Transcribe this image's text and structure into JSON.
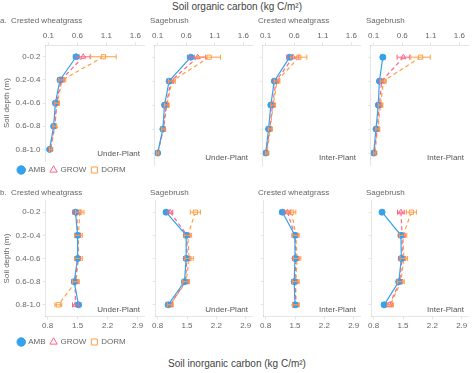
{
  "chart_data": [
    {
      "type": "line",
      "orientation": "horizontal",
      "title": "a.  Crested wheatgrass",
      "xlabel": "Soil organic carbon (kg C/m²)",
      "ylabel": "Soil depth (m)",
      "annotations": [
        "Under-Plant"
      ],
      "y": [
        0.1,
        0.3,
        0.5,
        0.7,
        0.9
      ],
      "xlim": [
        0.05,
        1.75
      ],
      "xticks": [
        0.1,
        0.6,
        1.1,
        1.6
      ],
      "ylim": [
        1,
        0
      ],
      "yticks": [
        {
          "value": 0.1,
          "label": "0-0.2"
        },
        {
          "value": 0.3,
          "label": "0.2-0.4"
        },
        {
          "value": 0.5,
          "label": "0.4-0.6"
        },
        {
          "value": 0.7,
          "label": "0.6-0.8"
        },
        {
          "value": 0.9,
          "label": "0.8-1.0"
        }
      ],
      "grid": false,
      "legend": "bottom",
      "series": [
        {
          "name": "AMB",
          "marker": "circle",
          "line_style": "solid",
          "values": [
            0.58,
            0.3,
            0.22,
            0.19,
            0.12
          ],
          "errors": [
            0.05,
            0.04,
            0.03,
            0.03,
            0.02
          ]
        },
        {
          "name": "GROW",
          "marker": "open-triangle",
          "line_style": "dashed",
          "values": [
            0.7,
            0.32,
            0.24,
            0.21,
            0.13
          ],
          "errors": [
            0.12,
            0.05,
            0.04,
            0.03,
            0.02
          ]
        },
        {
          "name": "DORM",
          "marker": "open-square",
          "line_style": "dashed",
          "values": [
            1.05,
            0.34,
            0.25,
            0.21,
            0.14
          ],
          "errors": [
            0.22,
            0.06,
            0.04,
            0.03,
            0.02
          ]
        }
      ]
    },
    {
      "type": "line",
      "orientation": "horizontal",
      "title": "Sagebrush",
      "annotations": [
        "Under-Plant"
      ],
      "y": [
        0.1,
        0.3,
        0.5,
        0.7,
        0.9
      ],
      "xlim": [
        0.05,
        1.75
      ],
      "xticks": [
        0.1,
        0.6,
        1.1,
        1.6
      ],
      "ylim": [
        1,
        0
      ],
      "yticks": [
        0.1,
        0.3,
        0.5,
        0.7,
        0.9
      ],
      "grid": false,
      "tick_labels": "x",
      "series": [
        {
          "name": "AMB",
          "marker": "circle",
          "line_style": "solid",
          "values": [
            0.68,
            0.3,
            0.22,
            0.19,
            0.1
          ],
          "errors": [
            0.06,
            0.04,
            0.03,
            0.03,
            0.02
          ]
        },
        {
          "name": "GROW",
          "marker": "open-triangle",
          "line_style": "dashed",
          "values": [
            0.8,
            0.33,
            0.25,
            0.2,
            0.1
          ],
          "errors": [
            0.14,
            0.05,
            0.04,
            0.03,
            0.02
          ]
        },
        {
          "name": "DORM",
          "marker": "open-square",
          "line_style": "dashed",
          "values": [
            1.0,
            0.35,
            0.26,
            0.2,
            0.1
          ],
          "errors": [
            0.2,
            0.06,
            0.04,
            0.03,
            0.02
          ]
        }
      ]
    },
    {
      "type": "line",
      "orientation": "horizontal",
      "title": "Crested wheatgrass",
      "annotations": [
        "Inter-Plant"
      ],
      "y": [
        0.1,
        0.3,
        0.5,
        0.7,
        0.9
      ],
      "xlim": [
        0.05,
        1.75
      ],
      "xticks": [
        0.1,
        0.6,
        1.1,
        1.6
      ],
      "ylim": [
        1,
        0
      ],
      "yticks": [
        0.1,
        0.3,
        0.5,
        0.7,
        0.9
      ],
      "grid": false,
      "tick_labels": "x",
      "series": [
        {
          "name": "AMB",
          "marker": "circle",
          "line_style": "solid",
          "values": [
            0.52,
            0.25,
            0.19,
            0.15,
            0.1
          ],
          "errors": [
            0.05,
            0.03,
            0.03,
            0.02,
            0.02
          ]
        },
        {
          "name": "GROW",
          "marker": "open-triangle",
          "line_style": "dashed",
          "values": [
            0.58,
            0.28,
            0.22,
            0.17,
            0.11
          ],
          "errors": [
            0.1,
            0.04,
            0.03,
            0.03,
            0.02
          ]
        },
        {
          "name": "DORM",
          "marker": "open-square",
          "line_style": "dashed",
          "values": [
            0.68,
            0.3,
            0.23,
            0.18,
            0.12
          ],
          "errors": [
            0.14,
            0.05,
            0.04,
            0.03,
            0.02
          ]
        }
      ]
    },
    {
      "type": "line",
      "orientation": "horizontal",
      "title": "Sagebrush",
      "annotations": [
        "Inter-Plant"
      ],
      "y": [
        0.1,
        0.3,
        0.5,
        0.7,
        0.9
      ],
      "xlim": [
        0.05,
        1.75
      ],
      "xticks": [
        0.1,
        0.6,
        1.1,
        1.6
      ],
      "ylim": [
        1,
        0
      ],
      "yticks": [
        0.1,
        0.3,
        0.5,
        0.7,
        0.9
      ],
      "grid": false,
      "tick_labels": "x",
      "series": [
        {
          "name": "AMB",
          "marker": "circle",
          "line_style": "solid",
          "values": [
            0.26,
            0.2,
            0.18,
            0.14,
            0.1
          ],
          "errors": [
            0.04,
            0.03,
            0.02,
            0.02,
            0.02
          ]
        },
        {
          "name": "GROW",
          "marker": "open-triangle",
          "line_style": "dashed",
          "values": [
            0.62,
            0.24,
            0.2,
            0.16,
            0.11
          ],
          "errors": [
            0.11,
            0.04,
            0.03,
            0.03,
            0.02
          ]
        },
        {
          "name": "DORM",
          "marker": "open-square",
          "line_style": "dashed",
          "values": [
            0.92,
            0.27,
            0.22,
            0.17,
            0.12
          ],
          "errors": [
            0.17,
            0.05,
            0.04,
            0.03,
            0.02
          ]
        }
      ]
    },
    {
      "type": "line",
      "orientation": "horizontal",
      "title": "b.  Crested wheatgrass",
      "xlabel": "Soil inorganic carbon (kg C/m²)",
      "ylabel": "Soil depth (m)",
      "annotations": [
        "Under-Plant"
      ],
      "y": [
        0.1,
        0.3,
        0.5,
        0.7,
        0.9
      ],
      "xlim": [
        0.75,
        3.05
      ],
      "xticks": [
        0.8,
        1.5,
        2.2,
        2.9
      ],
      "ylim": [
        1,
        0
      ],
      "yticks": [
        {
          "value": 0.1,
          "label": "0-0.2"
        },
        {
          "value": 0.3,
          "label": "0.2-0.4"
        },
        {
          "value": 0.5,
          "label": "0.4-0.6"
        },
        {
          "value": 0.7,
          "label": "0.6-0.8"
        },
        {
          "value": 0.9,
          "label": "0.8-1.0"
        }
      ],
      "grid": false,
      "legend": "bottom",
      "series": [
        {
          "name": "AMB",
          "marker": "circle",
          "line_style": "solid",
          "values": [
            1.45,
            1.5,
            1.5,
            1.42,
            1.52
          ],
          "errors": [
            0.06,
            0.06,
            0.06,
            0.06,
            0.06
          ]
        },
        {
          "name": "GROW",
          "marker": "open-triangle",
          "line_style": "dashed",
          "values": [
            1.48,
            1.5,
            1.5,
            1.44,
            1.45
          ],
          "errors": [
            0.08,
            0.07,
            0.07,
            0.07,
            0.07
          ]
        },
        {
          "name": "DORM",
          "marker": "open-square",
          "line_style": "dashed",
          "values": [
            1.55,
            1.52,
            1.52,
            1.46,
            1.05
          ],
          "errors": [
            0.1,
            0.09,
            0.09,
            0.08,
            0.08
          ]
        }
      ]
    },
    {
      "type": "line",
      "orientation": "horizontal",
      "title": "Sagebrush",
      "annotations": [
        "Under-Plant"
      ],
      "y": [
        0.1,
        0.3,
        0.5,
        0.7,
        0.9
      ],
      "xlim": [
        0.75,
        3.05
      ],
      "xticks": [
        0.8,
        1.5,
        2.2,
        2.9
      ],
      "ylim": [
        1,
        0
      ],
      "yticks": [
        0.1,
        0.3,
        0.5,
        0.7,
        0.9
      ],
      "grid": false,
      "tick_labels": "x",
      "series": [
        {
          "name": "AMB",
          "marker": "circle",
          "line_style": "solid",
          "values": [
            1.0,
            1.48,
            1.48,
            1.44,
            1.05
          ],
          "errors": [
            0.05,
            0.06,
            0.06,
            0.06,
            0.05
          ]
        },
        {
          "name": "GROW",
          "marker": "open-triangle",
          "line_style": "dashed",
          "values": [
            1.1,
            1.5,
            1.5,
            1.46,
            1.1
          ],
          "errors": [
            0.06,
            0.07,
            0.07,
            0.07,
            0.06
          ]
        },
        {
          "name": "DORM",
          "marker": "open-square",
          "line_style": "dashed",
          "values": [
            1.7,
            1.52,
            1.55,
            1.48,
            1.1
          ],
          "errors": [
            0.12,
            0.09,
            0.1,
            0.08,
            0.07
          ]
        }
      ]
    },
    {
      "type": "line",
      "orientation": "horizontal",
      "title": "Crested wheatgrass",
      "annotations": [
        "Inter-Plant"
      ],
      "y": [
        0.1,
        0.3,
        0.5,
        0.7,
        0.9
      ],
      "xlim": [
        0.75,
        3.05
      ],
      "xticks": [
        0.8,
        1.5,
        2.2,
        2.9
      ],
      "ylim": [
        1,
        0
      ],
      "yticks": [
        0.1,
        0.3,
        0.5,
        0.7,
        0.9
      ],
      "grid": false,
      "tick_labels": "x",
      "series": [
        {
          "name": "AMB",
          "marker": "circle",
          "line_style": "solid",
          "values": [
            1.2,
            1.5,
            1.5,
            1.48,
            1.5
          ],
          "errors": [
            0.06,
            0.06,
            0.06,
            0.06,
            0.06
          ]
        },
        {
          "name": "GROW",
          "marker": "open-triangle",
          "line_style": "dashed",
          "values": [
            1.32,
            1.5,
            1.52,
            1.5,
            1.52
          ],
          "errors": [
            0.08,
            0.07,
            0.07,
            0.07,
            0.07
          ]
        },
        {
          "name": "DORM",
          "marker": "open-square",
          "line_style": "dashed",
          "values": [
            1.42,
            1.52,
            1.55,
            1.52,
            1.52
          ],
          "errors": [
            0.1,
            0.08,
            0.09,
            0.08,
            0.08
          ]
        }
      ]
    },
    {
      "type": "line",
      "orientation": "horizontal",
      "title": "Sagebrush",
      "annotations": [
        "Inter-Plant"
      ],
      "y": [
        0.1,
        0.3,
        0.5,
        0.7,
        0.9
      ],
      "xlim": [
        0.75,
        3.05
      ],
      "xticks": [
        0.8,
        1.5,
        2.2,
        2.9
      ],
      "ylim": [
        1,
        0
      ],
      "yticks": [
        0.1,
        0.3,
        0.5,
        0.7,
        0.9
      ],
      "grid": false,
      "tick_labels": "x",
      "series": [
        {
          "name": "AMB",
          "marker": "circle",
          "line_style": "solid",
          "values": [
            1.0,
            1.45,
            1.46,
            1.4,
            1.05
          ],
          "errors": [
            0.05,
            0.06,
            0.06,
            0.06,
            0.05
          ]
        },
        {
          "name": "GROW",
          "marker": "open-triangle",
          "line_style": "dashed",
          "values": [
            1.45,
            1.48,
            1.48,
            1.42,
            1.18
          ],
          "errors": [
            0.08,
            0.07,
            0.07,
            0.06,
            0.06
          ]
        },
        {
          "name": "DORM",
          "marker": "open-square",
          "line_style": "dashed",
          "values": [
            1.7,
            1.5,
            1.52,
            1.45,
            1.2
          ],
          "errors": [
            0.12,
            0.09,
            0.09,
            0.08,
            0.07
          ]
        }
      ]
    }
  ]
}
